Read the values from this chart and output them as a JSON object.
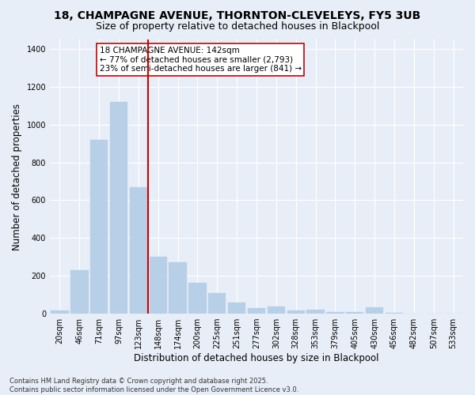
{
  "title_line1": "18, CHAMPAGNE AVENUE, THORNTON-CLEVELEYS, FY5 3UB",
  "title_line2": "Size of property relative to detached houses in Blackpool",
  "xlabel": "Distribution of detached houses by size in Blackpool",
  "ylabel": "Number of detached properties",
  "categories": [
    "20sqm",
    "46sqm",
    "71sqm",
    "97sqm",
    "123sqm",
    "148sqm",
    "174sqm",
    "200sqm",
    "225sqm",
    "251sqm",
    "277sqm",
    "302sqm",
    "328sqm",
    "353sqm",
    "379sqm",
    "405sqm",
    "430sqm",
    "456sqm",
    "482sqm",
    "507sqm",
    "533sqm"
  ],
  "values": [
    18,
    230,
    920,
    1120,
    670,
    300,
    270,
    165,
    110,
    60,
    30,
    40,
    18,
    22,
    10,
    10,
    35,
    5,
    2,
    2,
    2
  ],
  "bar_color": "#b8cfe8",
  "bar_edge_color": "#b8cfe8",
  "vline_color": "#cc0000",
  "vline_index": 4.5,
  "annotation_text": "18 CHAMPAGNE AVENUE: 142sqm\n← 77% of detached houses are smaller (2,793)\n23% of semi-detached houses are larger (841) →",
  "annotation_box_color": "#ffffff",
  "annotation_box_edge": "#cc0000",
  "ylim": [
    0,
    1450
  ],
  "yticks": [
    0,
    200,
    400,
    600,
    800,
    1000,
    1200,
    1400
  ],
  "bg_color": "#e8eef8",
  "plot_bg_color": "#e8eef8",
  "footer_text": "Contains HM Land Registry data © Crown copyright and database right 2025.\nContains public sector information licensed under the Open Government Licence v3.0.",
  "title_fontsize": 10,
  "subtitle_fontsize": 9,
  "tick_fontsize": 7,
  "label_fontsize": 8.5,
  "annotation_fontsize": 7.5,
  "footer_fontsize": 6
}
